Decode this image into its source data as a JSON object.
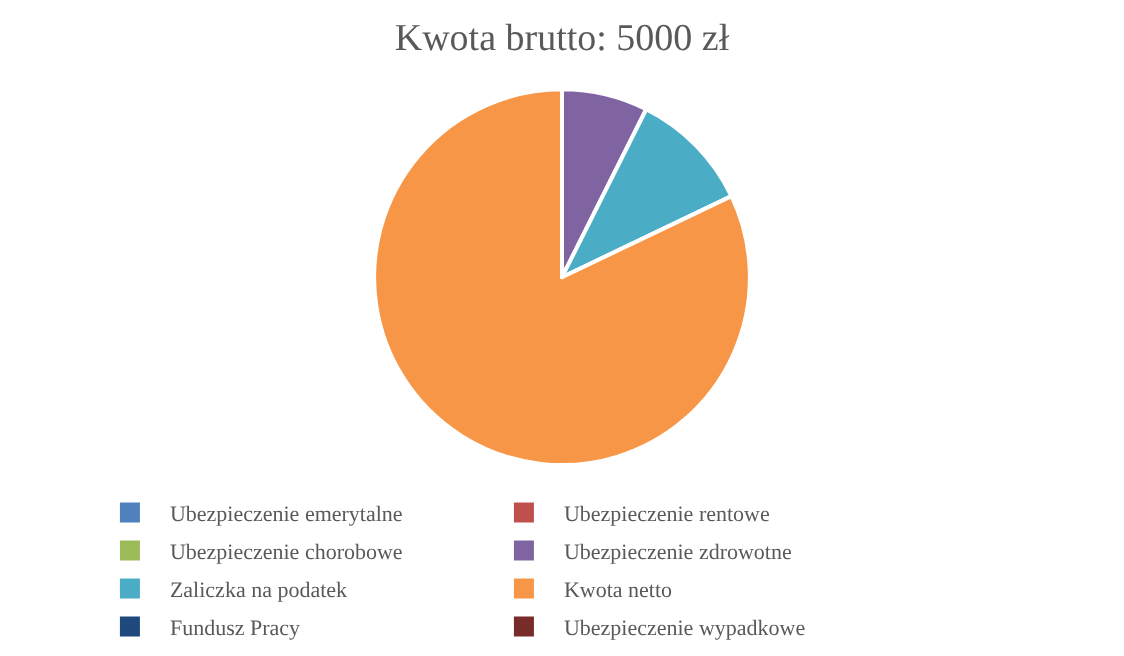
{
  "chart_data": {
    "type": "pie",
    "title": "Kwota brutto: 5000 zł",
    "categories": [
      "Ubezpieczenie emerytalne",
      "Ubezpieczenie rentowe",
      "Ubezpieczenie chorobowe",
      "Ubezpieczenie zdrowotne",
      "Zaliczka na podatek",
      "Kwota netto",
      "Fundusz Pracy",
      "Ubezpieczenie wypadkowe"
    ],
    "values": [
      0,
      0,
      0,
      7.4,
      10.5,
      82.1,
      0,
      0
    ],
    "colors": [
      "#4f81bd",
      "#c0504d",
      "#9bbb59",
      "#8064a2",
      "#4bacc6",
      "#f79646",
      "#1f497d",
      "#772c2a"
    ],
    "legend": "bottom"
  }
}
